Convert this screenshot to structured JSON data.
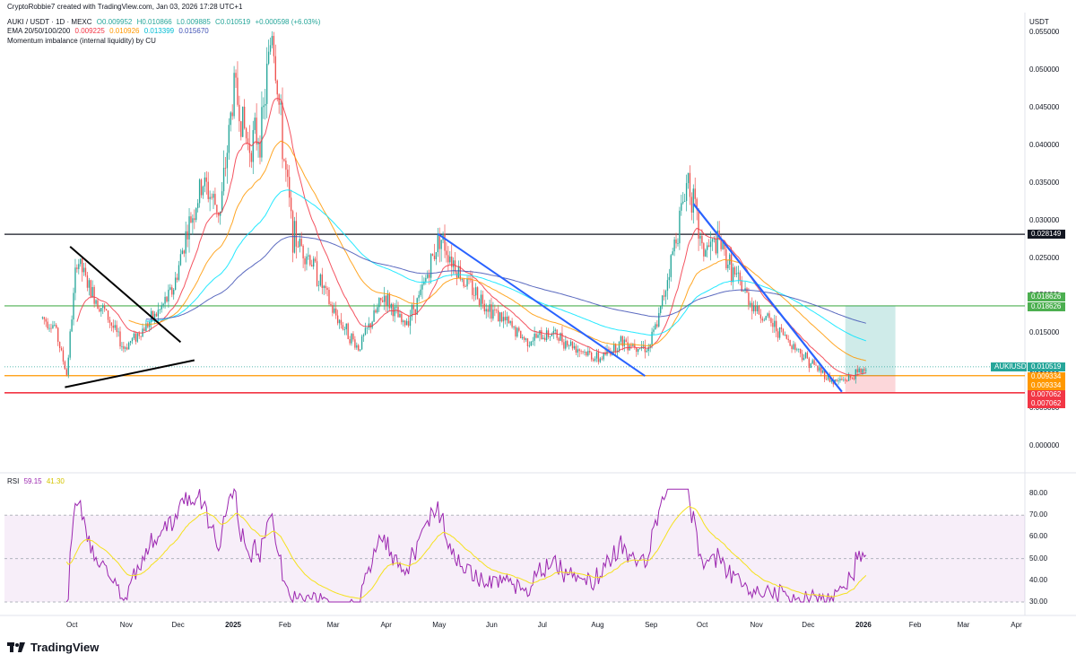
{
  "header": {
    "credit": "CryptoRobbie7 created with TradingView.com, Jan 03, 2026 17:28 UTC+1",
    "symbol": "AUKI / USDT · 1D · MEXC",
    "o": "O0.009952",
    "h": "H0.010866",
    "l": "L0.009885",
    "c": "C0.010519",
    "change": "+0.000598 (+6.03%)",
    "ema_label": "EMA 20/50/100/200",
    "ema_values": [
      "0.009225",
      "0.010926",
      "0.013399",
      "0.015670"
    ],
    "indicator": "Momentum imbalance (internal liquidity) by CU"
  },
  "currency": "USDT",
  "price_axis": [
    "0.055000",
    "0.050000",
    "0.045000",
    "0.040000",
    "0.035000",
    "0.030000",
    "0.025000",
    "0.020000",
    "0.015000",
    "0.010000",
    "0.005000",
    "0.000000"
  ],
  "price_tags": {
    "resistance": "0.028149",
    "target_1": "0.018626",
    "target_2": "0.018626",
    "symbol_label": "AUKIUSDT",
    "last": "0.010519",
    "entry_1": "0.009334",
    "entry_2": "0.009334",
    "stop_1": "0.007062",
    "stop_2": "0.007062"
  },
  "rsi": {
    "label": "RSI",
    "value": "59.15",
    "ma": "41.30",
    "axis": [
      "80.00",
      "70.00",
      "60.00",
      "50.00",
      "40.00",
      "30.00"
    ]
  },
  "time_axis": [
    "Oct",
    "Nov",
    "Dec",
    "2025",
    "Feb",
    "Mar",
    "Apr",
    "May",
    "Jun",
    "Jul",
    "Aug",
    "Sep",
    "Oct",
    "Nov",
    "Dec",
    "2026",
    "Feb",
    "Mar",
    "Apr"
  ],
  "brand": "TradingView",
  "colors": {
    "up": "#26a69a",
    "down": "#ef5350",
    "ema20": "#f23645",
    "ema50": "#ff9800",
    "ema100": "#00e5ff",
    "ema200": "#3f51b5",
    "rsi": "#9c27b0",
    "rsi_ma": "#f5e11d"
  },
  "chart_data": {
    "type": "candlestick",
    "title": "AUKI / USDT · 1D · MEXC",
    "ylim": [
      0,
      0.057
    ],
    "series_close": [
      {
        "date": "2024-09-13",
        "close": 0.017
      },
      {
        "date": "2024-09-20",
        "close": 0.016
      },
      {
        "date": "2024-09-27",
        "close": 0.0095
      },
      {
        "date": "2024-10-03",
        "close": 0.025
      },
      {
        "date": "2024-10-10",
        "close": 0.021
      },
      {
        "date": "2024-10-20",
        "close": 0.0175
      },
      {
        "date": "2024-10-30",
        "close": 0.013
      },
      {
        "date": "2024-11-10",
        "close": 0.0155
      },
      {
        "date": "2024-11-20",
        "close": 0.018
      },
      {
        "date": "2024-11-28",
        "close": 0.021
      },
      {
        "date": "2024-12-05",
        "close": 0.028
      },
      {
        "date": "2024-12-15",
        "close": 0.035
      },
      {
        "date": "2024-12-25",
        "close": 0.031
      },
      {
        "date": "2025-01-02",
        "close": 0.048
      },
      {
        "date": "2025-01-10",
        "close": 0.04
      },
      {
        "date": "2025-01-18",
        "close": 0.042
      },
      {
        "date": "2025-01-24",
        "close": 0.056
      },
      {
        "date": "2025-01-30",
        "close": 0.04
      },
      {
        "date": "2025-02-05",
        "close": 0.028
      },
      {
        "date": "2025-02-15",
        "close": 0.025
      },
      {
        "date": "2025-02-28",
        "close": 0.018
      },
      {
        "date": "2025-03-15",
        "close": 0.013
      },
      {
        "date": "2025-03-30",
        "close": 0.02
      },
      {
        "date": "2025-04-10",
        "close": 0.016
      },
      {
        "date": "2025-04-20",
        "close": 0.02
      },
      {
        "date": "2025-05-01",
        "close": 0.028
      },
      {
        "date": "2025-05-15",
        "close": 0.022
      },
      {
        "date": "2025-06-01",
        "close": 0.018
      },
      {
        "date": "2025-06-20",
        "close": 0.014
      },
      {
        "date": "2025-07-05",
        "close": 0.015
      },
      {
        "date": "2025-07-20",
        "close": 0.013
      },
      {
        "date": "2025-08-01",
        "close": 0.0115
      },
      {
        "date": "2025-08-15",
        "close": 0.014
      },
      {
        "date": "2025-08-30",
        "close": 0.013
      },
      {
        "date": "2025-09-05",
        "close": 0.017
      },
      {
        "date": "2025-09-15",
        "close": 0.028
      },
      {
        "date": "2025-09-22",
        "close": 0.036
      },
      {
        "date": "2025-09-30",
        "close": 0.026
      },
      {
        "date": "2025-10-10",
        "close": 0.027
      },
      {
        "date": "2025-10-20",
        "close": 0.022
      },
      {
        "date": "2025-11-01",
        "close": 0.018
      },
      {
        "date": "2025-11-15",
        "close": 0.015
      },
      {
        "date": "2025-11-30",
        "close": 0.0115
      },
      {
        "date": "2025-12-15",
        "close": 0.0085
      },
      {
        "date": "2025-12-25",
        "close": 0.009
      },
      {
        "date": "2026-01-03",
        "close": 0.010519
      }
    ],
    "horizontal_levels": [
      0.028149,
      0.018626,
      0.010519,
      0.009334,
      0.007062
    ],
    "ema_last": [
      0.009225,
      0.010926,
      0.013399,
      0.01567
    ],
    "rsi_ylim": [
      28,
      84
    ],
    "rsi_bands": [
      30,
      70
    ],
    "rsi_last": 59.15,
    "rsi_ma_last": 41.3
  }
}
